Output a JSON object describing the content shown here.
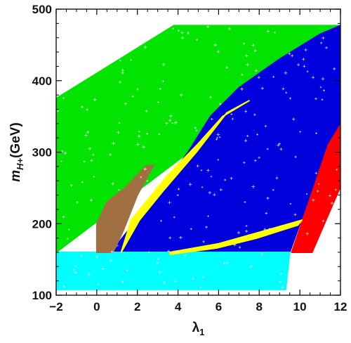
{
  "chart_data": {
    "type": "scatter",
    "title": "",
    "xlabel": "λ",
    "xlabel_sub": "1",
    "ylabel": "m",
    "ylabel_sub": "H+",
    "ylabel_suffix": "(GeV)",
    "xlim": [
      -2,
      12
    ],
    "ylim": [
      100,
      500
    ],
    "x_ticks": [
      -2,
      0,
      2,
      4,
      6,
      8,
      10,
      12
    ],
    "x_tick_labels": [
      "−2",
      "0",
      "2",
      "4",
      "6",
      "8",
      "10",
      "12"
    ],
    "y_ticks": [
      100,
      200,
      300,
      400,
      500
    ],
    "y_tick_labels": [
      "100",
      "200",
      "300",
      "400",
      "500"
    ],
    "grid": false,
    "legend": "none",
    "marker": "plus",
    "regions": [
      {
        "color": "#00e400",
        "polygon": [
          [
            -2,
            375
          ],
          [
            3.8,
            477
          ],
          [
            12,
            477
          ],
          [
            12,
            460
          ],
          [
            -2,
            160
          ]
        ]
      },
      {
        "color": "#0000dd",
        "polygon": [
          [
            0.7,
            160
          ],
          [
            2.5,
            225
          ],
          [
            4.5,
            300
          ],
          [
            5.6,
            350
          ],
          [
            7,
            390
          ],
          [
            9,
            430
          ],
          [
            11,
            465
          ],
          [
            12,
            477
          ],
          [
            12,
            338
          ],
          [
            11.4,
            310
          ],
          [
            10,
            200
          ],
          [
            9.5,
            160
          ]
        ]
      },
      {
        "color": "#ff0000",
        "polygon": [
          [
            9.6,
            160
          ],
          [
            11.4,
            310
          ],
          [
            12,
            338
          ],
          [
            12,
            252
          ],
          [
            10.6,
            160
          ]
        ]
      },
      {
        "color": "#00ffff",
        "polygon": [
          [
            -2,
            160
          ],
          [
            9.5,
            160
          ],
          [
            9.3,
            108
          ],
          [
            -2,
            108
          ]
        ]
      },
      {
        "color": "#ffff00",
        "polygon": [
          [
            1.7,
            205
          ],
          [
            3.5,
            268
          ],
          [
            5,
            312
          ],
          [
            6.2,
            350
          ],
          [
            7.5,
            372
          ],
          [
            6.4,
            355
          ],
          [
            4.9,
            300
          ],
          [
            3.3,
            247
          ],
          [
            2.1,
            205
          ],
          [
            1.2,
            160
          ]
        ]
      },
      {
        "color": "#ffff00",
        "polygon": [
          [
            3.6,
            160
          ],
          [
            6,
            172
          ],
          [
            8,
            188
          ],
          [
            10.1,
            205
          ],
          [
            9.9,
            198
          ],
          [
            7.9,
            180
          ],
          [
            5.9,
            166
          ],
          [
            3.6,
            157
          ]
        ]
      },
      {
        "color": "#a07040",
        "polygon": [
          [
            0,
            160
          ],
          [
            0,
            200
          ],
          [
            0.5,
            230
          ],
          [
            1.4,
            250
          ],
          [
            2.4,
            280
          ],
          [
            2.8,
            282
          ],
          [
            2,
            240
          ],
          [
            1.3,
            190
          ],
          [
            0.8,
            160
          ]
        ]
      }
    ]
  }
}
